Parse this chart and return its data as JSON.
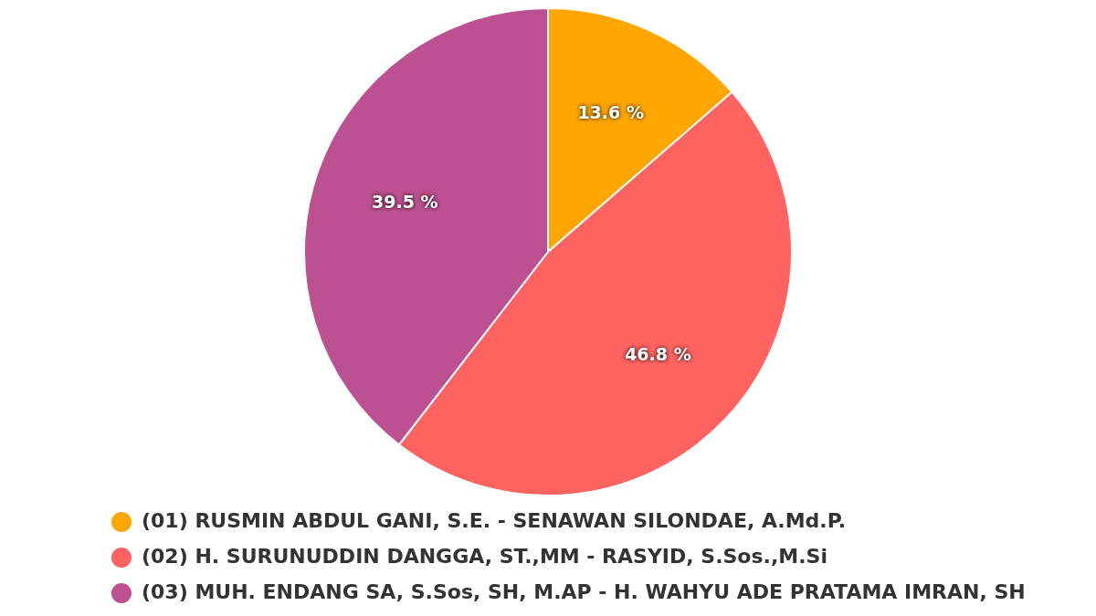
{
  "chart_data": {
    "type": "pie",
    "categories": [
      "(01) RUSMIN ABDUL GANI, S.E. - SENAWAN SILONDAE, A.Md.P.",
      "(02) H. SURUNUDDIN DANGGA, ST.,MM - RASYID, S.Sos.,M.Si",
      "(03) MUH. ENDANG SA, S.Sos, SH, M.AP - H. WAHYU ADE PRATAMA IMRAN, SH"
    ],
    "values": [
      13.6,
      46.8,
      39.5
    ],
    "colors": [
      "#ffa600",
      "#ff6361",
      "#bc5090"
    ],
    "value_labels": [
      "13.6 %",
      "46.8 %",
      "39.5 %"
    ],
    "legend": "bottom"
  }
}
